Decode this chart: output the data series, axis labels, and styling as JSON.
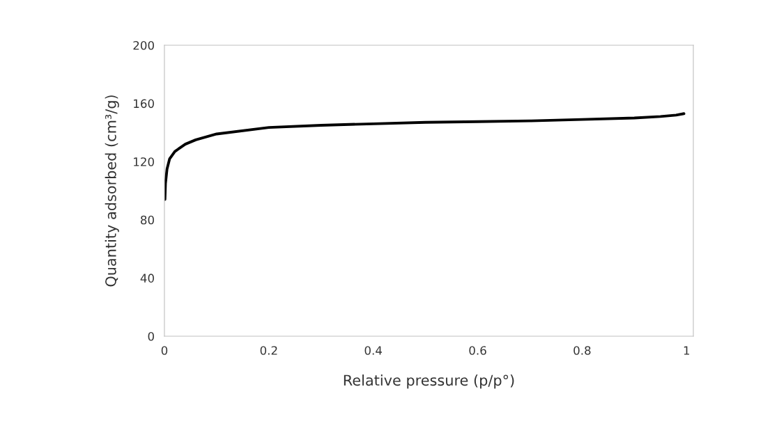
{
  "chart_data": {
    "type": "line",
    "xlabel": "Relative pressure (p/p°)",
    "ylabel": "Quantity adsorbed (cm³/g)",
    "series": [
      {
        "color": "#000000",
        "x": [
          0.001,
          0.002,
          0.005,
          0.01,
          0.02,
          0.04,
          0.06,
          0.1,
          0.2,
          0.3,
          0.4,
          0.5,
          0.6,
          0.7,
          0.8,
          0.9,
          0.95,
          0.98,
          0.995
        ],
        "values": [
          94,
          105,
          115,
          122,
          127,
          132,
          135,
          139,
          143.5,
          145,
          146,
          147,
          147.5,
          148,
          149,
          150,
          151,
          152,
          153
        ]
      }
    ],
    "xlim": [
      0,
      1.013
    ],
    "xticks": [
      0,
      {
        "value": 0.2,
        "label": "0.2"
      },
      {
        "value": 0.4,
        "label": "0.4"
      },
      {
        "value": 0.6,
        "label": "0.6"
      },
      {
        "value": 0.8,
        "label": "0.8"
      },
      1
    ],
    "ylim": [
      0,
      200
    ],
    "yticks": [
      0,
      40,
      80,
      120,
      160,
      200
    ],
    "grid": false,
    "legend": false,
    "marker": "none",
    "line_style": "solid"
  }
}
